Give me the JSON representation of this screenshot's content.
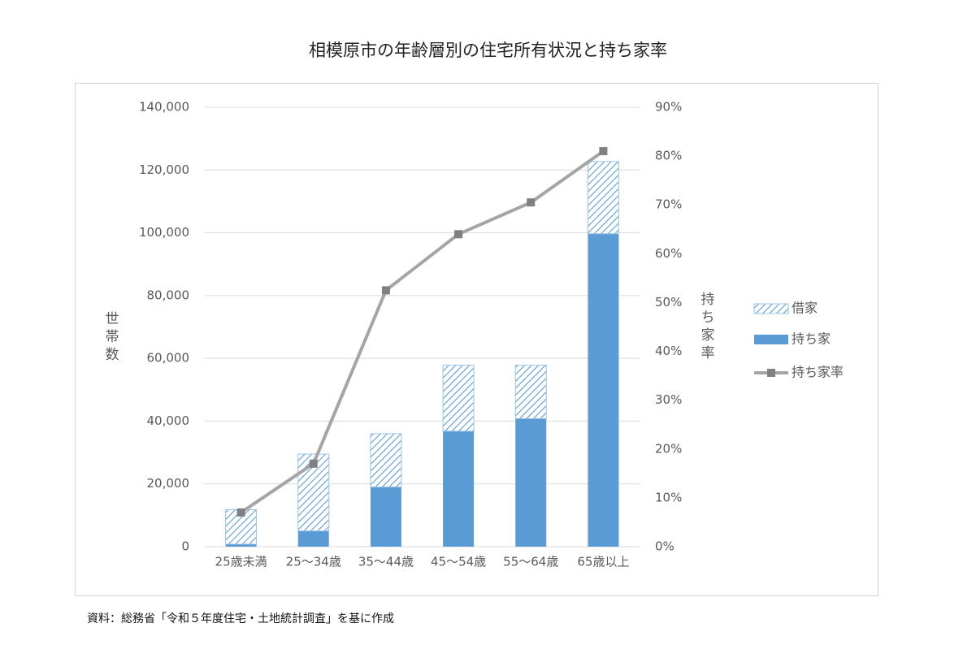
{
  "title": "相模原市の年齢層別の住宅所有状況と持ち家率",
  "source": "資料：総務省「令和５年度住宅・土地統計調査」を基に作成",
  "colors": {
    "owned": "#5b9bd5",
    "rented_pattern": "#5b9bd5",
    "rate_line": "#a5a5a5",
    "grid": "#d9d9d9",
    "axis_text": "#595959"
  },
  "chart_data": {
    "type": "bar",
    "stacked": true,
    "categories": [
      "25歳未満",
      "25～34歳",
      "35～44歳",
      "45～54歳",
      "55～64歳",
      "65歳以上"
    ],
    "series": [
      {
        "name": "借家",
        "values": [
          11000,
          24500,
          17000,
          21000,
          17000,
          23000
        ],
        "style": "hatched"
      },
      {
        "name": "持ち家",
        "values": [
          800,
          5000,
          19000,
          36800,
          40800,
          99700
        ],
        "style": "solid"
      },
      {
        "name": "持ち家率",
        "values": [
          0.07,
          0.17,
          0.525,
          0.64,
          0.705,
          0.81
        ],
        "type": "line",
        "axis": "right"
      }
    ],
    "ylabel": "世帯数",
    "y2label": "持ち家率",
    "ylim": [
      0,
      140000
    ],
    "y2lim": [
      0,
      0.9
    ],
    "yticks": [
      "0",
      "20,000",
      "40,000",
      "60,000",
      "80,000",
      "100,000",
      "120,000",
      "140,000"
    ],
    "y2ticks": [
      "0%",
      "10%",
      "20%",
      "30%",
      "40%",
      "50%",
      "60%",
      "70%",
      "80%",
      "90%"
    ],
    "grid": true,
    "legend_position": "right"
  }
}
